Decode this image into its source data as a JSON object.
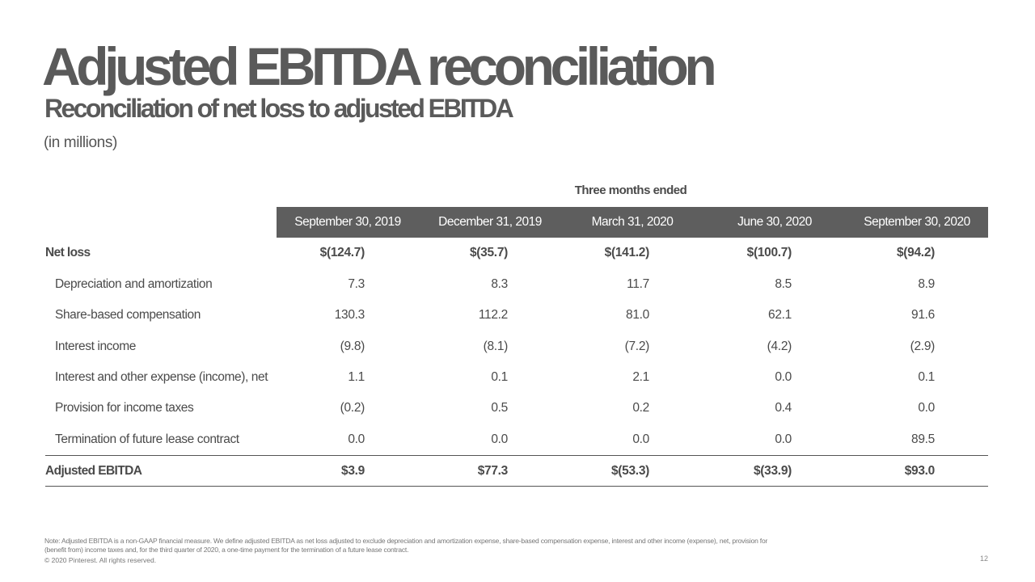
{
  "title": "Adjusted EBITDA reconciliation",
  "subtitle": "Reconciliation of net loss to adjusted EBITDA",
  "units": "(in millions)",
  "table": {
    "period_caption": "Three months ended",
    "columns": [
      "September 30, 2019",
      "December 31, 2019",
      "March 31, 2020",
      "June 30, 2020",
      "September 30, 2020"
    ],
    "rows": [
      {
        "label": "Net loss",
        "values": [
          "$(124.7)",
          "$(35.7)",
          "$(141.2)",
          "$(100.7)",
          "$(94.2)"
        ]
      },
      {
        "label": "Depreciation and amortization",
        "values": [
          "7.3",
          "8.3",
          "11.7",
          "8.5",
          "8.9"
        ]
      },
      {
        "label": "Share-based compensation",
        "values": [
          "130.3",
          "112.2",
          "81.0",
          "62.1",
          "91.6"
        ]
      },
      {
        "label": "Interest income",
        "values": [
          "(9.8)",
          "(8.1)",
          "(7.2)",
          "(4.2)",
          "(2.9)"
        ]
      },
      {
        "label": "Interest and other expense (income), net",
        "values": [
          "1.1",
          "0.1",
          "2.1",
          "0.0",
          "0.1"
        ]
      },
      {
        "label": "Provision for income taxes",
        "values": [
          "(0.2)",
          "0.5",
          "0.2",
          "0.4",
          "0.0"
        ]
      },
      {
        "label": "Termination of future lease contract",
        "values": [
          "0.0",
          "0.0",
          "0.0",
          "0.0",
          "89.5"
        ]
      },
      {
        "label": "Adjusted EBITDA",
        "values": [
          "$3.9",
          "$77.3",
          "$(53.3)",
          "$(33.9)",
          "$93.0"
        ]
      }
    ]
  },
  "footer": {
    "note_line1": "Note: Adjusted EBITDA is a non-GAAP financial measure. We define adjusted EBITDA as net loss adjusted to exclude depreciation and amortization expense, share-based compensation expense, interest and other income (expense), net, provision for",
    "note_line2": "(benefit from) income taxes and, for the third quarter of 2020, a one-time payment for the termination of a future lease contract.",
    "copyright": "© 2020 Pinterest. All rights reserved.",
    "page_number": "12"
  },
  "colors": {
    "header_band": "#5e5e5e",
    "title": "#5a5a5a",
    "text": "#4a4a4a"
  }
}
